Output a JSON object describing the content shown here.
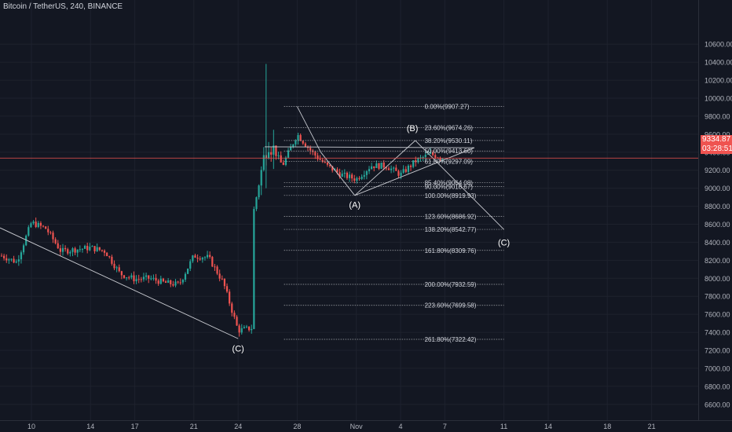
{
  "header": {
    "symbol_title": "Bitcoin / TetherUS, 240, BINANCE"
  },
  "price_badges": {
    "last_price": "9334.87",
    "countdown": "03:28:51"
  },
  "colors": {
    "background": "#131722",
    "grid": "#1e222d",
    "up": "#26a69a",
    "down": "#ef5350",
    "fib_line": "#a8aab0",
    "pattern_line": "#c9cbd1",
    "price_line": "#ef5350",
    "text": "#d1d4dc"
  },
  "chart_data": {
    "type": "candlestick",
    "title": "Bitcoin / TetherUS, 240, BINANCE",
    "y_axis_ticks": [
      "6600.00",
      "6800.00",
      "7000.00",
      "7200.00",
      "7400.00",
      "7600.00",
      "7800.00",
      "8000.00",
      "8200.00",
      "8400.00",
      "8600.00",
      "8800.00",
      "9000.00",
      "9200.00",
      "9400.00",
      "9600.00",
      "9800.00",
      "10000.00",
      "10200.00",
      "10400.00",
      "10600.00"
    ],
    "x_axis_ticks": [
      "10",
      "14",
      "17",
      "21",
      "24",
      "28",
      "Nov",
      "4",
      "7",
      "11",
      "14",
      "18",
      "21"
    ],
    "ylim": [
      6500,
      10700
    ],
    "last_price": 9334.87,
    "price_path": [
      [
        "Oct 8",
        8250
      ],
      [
        "Oct 9",
        8180
      ],
      [
        "Oct 10",
        8620
      ],
      [
        "Oct 11",
        8550
      ],
      [
        "Oct 12",
        8300
      ],
      [
        "Oct 14",
        8340
      ],
      [
        "Oct 15",
        8300
      ],
      [
        "Oct 16",
        8050
      ],
      [
        "Oct 17",
        7990
      ],
      [
        "Oct 18",
        8000
      ],
      [
        "Oct 19",
        7950
      ],
      [
        "Oct 20",
        7930
      ],
      [
        "Oct 21",
        8250
      ],
      [
        "Oct 22",
        8230
      ],
      [
        "Oct 23",
        7950
      ],
      [
        "Oct 24",
        7420
      ],
      [
        "Oct 25",
        7450
      ],
      [
        "Oct 25",
        8700
      ],
      [
        "Oct 26",
        9550
      ],
      [
        "Oct 27",
        9250
      ],
      [
        "Oct 28",
        9600
      ],
      [
        "Oct 29",
        9400
      ],
      [
        "Oct 30",
        9250
      ],
      [
        "Oct 31",
        9150
      ],
      [
        "Nov 1",
        9100
      ],
      [
        "Nov 2",
        9250
      ],
      [
        "Nov 3",
        9250
      ],
      [
        "Nov 4",
        9150
      ],
      [
        "Nov 5",
        9300
      ],
      [
        "Nov 6",
        9380
      ],
      [
        "Nov 7",
        9335
      ]
    ],
    "fib_levels": [
      {
        "label": "0.00%(9907.27)",
        "price": 9907.27
      },
      {
        "label": "23.60%(9674.26)",
        "price": 9674.26
      },
      {
        "label": "38.20%(9530.11)",
        "price": 9530.11
      },
      {
        "label": "50.00%(9413.60)",
        "price": 9413.6
      },
      {
        "label": "61.80%(9297.09)",
        "price": 9297.09
      },
      {
        "label": "85.40%(9064.08)",
        "price": 9064.08
      },
      {
        "label": "90.00%(9018.67)",
        "price": 9018.67
      },
      {
        "label": "100.00%(8919.93)",
        "price": 8919.93
      },
      {
        "label": "123.60%(8686.92)",
        "price": 8686.92
      },
      {
        "label": "138.20%(8542.77)",
        "price": 8542.77
      },
      {
        "label": "161.80%(8309.76)",
        "price": 8309.76
      },
      {
        "label": "200.00%(7932.59)",
        "price": 7932.59
      },
      {
        "label": "223.60%(7699.58)",
        "price": 7699.58
      },
      {
        "label": "261.80%(7322.42)",
        "price": 7322.42
      }
    ],
    "wave_labels": [
      "(C)",
      "(A)",
      "(B)",
      "(C)"
    ],
    "grid": true
  }
}
